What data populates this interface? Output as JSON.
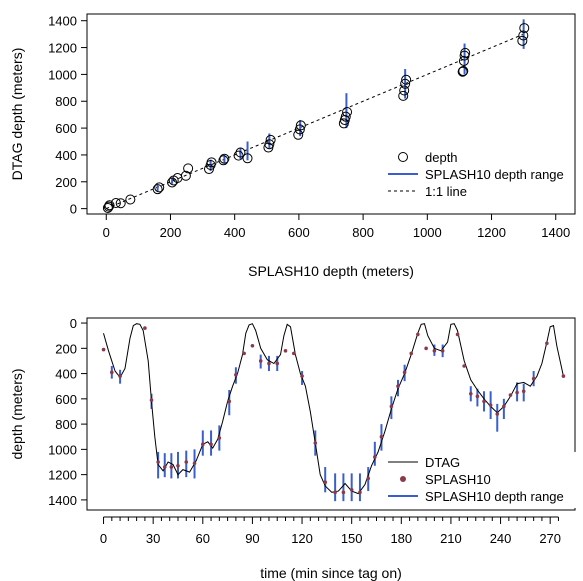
{
  "chart_data": [
    {
      "type": "scatter",
      "xlabel": "SPLASH10 depth (meters)",
      "ylabel": "DTAG depth (meters)",
      "xlim": [
        -60,
        1460
      ],
      "ylim": [
        -40,
        1450
      ],
      "xticks": [
        0,
        200,
        400,
        600,
        800,
        1000,
        1200,
        1400
      ],
      "yticks": [
        0,
        200,
        400,
        600,
        800,
        1000,
        1200,
        1400
      ],
      "grid": false,
      "legend_position": "bottom-right",
      "legend": {
        "points": "depth",
        "range": "SPLASH10 depth range",
        "line": "1:1 line"
      },
      "colors": {
        "range": "#3a5fcd",
        "points": "#000000",
        "line": "#000000"
      },
      "points": [
        [
          5,
          5
        ],
        [
          8,
          15
        ],
        [
          10,
          25
        ],
        [
          30,
          42
        ],
        [
          45,
          40
        ],
        [
          75,
          68
        ],
        [
          160,
          145
        ],
        [
          165,
          158
        ],
        [
          205,
          195
        ],
        [
          210,
          210
        ],
        [
          222,
          228
        ],
        [
          248,
          245
        ],
        [
          255,
          300
        ],
        [
          320,
          295
        ],
        [
          325,
          325
        ],
        [
          328,
          345
        ],
        [
          365,
          360
        ],
        [
          368,
          372
        ],
        [
          412,
          395
        ],
        [
          418,
          418
        ],
        [
          440,
          375
        ],
        [
          505,
          455
        ],
        [
          508,
          480
        ],
        [
          512,
          512
        ],
        [
          598,
          550
        ],
        [
          603,
          590
        ],
        [
          606,
          620
        ],
        [
          740,
          635
        ],
        [
          743,
          660
        ],
        [
          746,
          685
        ],
        [
          750,
          720
        ],
        [
          925,
          840
        ],
        [
          928,
          880
        ],
        [
          931,
          930
        ],
        [
          934,
          960
        ],
        [
          1110,
          1020
        ],
        [
          1112,
          1025
        ],
        [
          1114,
          1100
        ],
        [
          1116,
          1140
        ],
        [
          1118,
          1160
        ],
        [
          1296,
          1250
        ],
        [
          1299,
          1290
        ],
        [
          1302,
          1345
        ]
      ],
      "ranges": [
        [
          160,
          130,
          175
        ],
        [
          205,
          185,
          225
        ],
        [
          325,
          280,
          365
        ],
        [
          368,
          340,
          400
        ],
        [
          418,
          370,
          455
        ],
        [
          440,
          360,
          500
        ],
        [
          508,
          450,
          560
        ],
        [
          604,
          540,
          660
        ],
        [
          748,
          600,
          860
        ],
        [
          931,
          820,
          1040
        ],
        [
          1116,
          1000,
          1230
        ],
        [
          1300,
          1190,
          1410
        ]
      ]
    },
    {
      "type": "line",
      "xlabel": "time (min since tag on)",
      "ylabel": "depth (meters)",
      "xlim": [
        -10,
        285
      ],
      "ylim": [
        1480,
        -40
      ],
      "xticks": [
        0,
        30,
        60,
        90,
        120,
        150,
        180,
        210,
        240,
        270
      ],
      "yticks": [
        0,
        200,
        400,
        600,
        800,
        1000,
        1200,
        1400
      ],
      "minor_xticks": [
        5,
        10,
        15,
        20,
        25,
        35,
        40,
        45,
        50,
        55,
        65,
        70,
        75,
        80,
        85,
        95,
        100,
        105,
        110,
        115,
        125,
        130,
        135,
        140,
        145,
        155,
        160,
        165,
        170,
        175,
        185,
        190,
        195,
        200,
        205,
        215,
        220,
        225,
        230,
        235,
        245,
        250,
        255,
        260,
        265,
        275
      ],
      "grid": false,
      "legend_position": "bottom-right",
      "legend": {
        "line": "DTAG",
        "points": "SPLASH10",
        "range": "SPLASH10 depth range"
      },
      "colors": {
        "line": "#000000",
        "points": "#8b3a4a",
        "range": "#3a5fcd"
      },
      "dtag": [
        [
          0,
          80
        ],
        [
          3,
          220
        ],
        [
          7,
          380
        ],
        [
          10,
          430
        ],
        [
          13,
          360
        ],
        [
          16,
          120
        ],
        [
          18,
          20
        ],
        [
          20,
          5
        ],
        [
          22,
          10
        ],
        [
          24,
          60
        ],
        [
          27,
          300
        ],
        [
          29,
          620
        ],
        [
          31,
          900
        ],
        [
          33,
          1120
        ],
        [
          36,
          1170
        ],
        [
          39,
          1100
        ],
        [
          42,
          1120
        ],
        [
          45,
          1200
        ],
        [
          48,
          1160
        ],
        [
          52,
          1180
        ],
        [
          56,
          1090
        ],
        [
          60,
          960
        ],
        [
          63,
          940
        ],
        [
          66,
          990
        ],
        [
          69,
          920
        ],
        [
          72,
          780
        ],
        [
          75,
          620
        ],
        [
          78,
          500
        ],
        [
          81,
          400
        ],
        [
          84,
          250
        ],
        [
          86,
          80
        ],
        [
          88,
          15
        ],
        [
          90,
          5
        ],
        [
          92,
          60
        ],
        [
          95,
          200
        ],
        [
          99,
          290
        ],
        [
          103,
          320
        ],
        [
          107,
          250
        ],
        [
          109,
          100
        ],
        [
          111,
          10
        ],
        [
          113,
          30
        ],
        [
          116,
          250
        ],
        [
          119,
          400
        ],
        [
          122,
          500
        ],
        [
          125,
          700
        ],
        [
          128,
          950
        ],
        [
          131,
          1200
        ],
        [
          134,
          1290
        ],
        [
          138,
          1340
        ],
        [
          142,
          1330
        ],
        [
          146,
          1270
        ],
        [
          150,
          1330
        ],
        [
          154,
          1350
        ],
        [
          158,
          1280
        ],
        [
          162,
          1130
        ],
        [
          166,
          1020
        ],
        [
          170,
          860
        ],
        [
          174,
          680
        ],
        [
          178,
          520
        ],
        [
          182,
          400
        ],
        [
          186,
          250
        ],
        [
          190,
          80
        ],
        [
          192,
          10
        ],
        [
          194,
          5
        ],
        [
          196,
          100
        ],
        [
          200,
          200
        ],
        [
          204,
          220
        ],
        [
          208,
          150
        ],
        [
          210,
          10
        ],
        [
          212,
          5
        ],
        [
          214,
          60
        ],
        [
          218,
          300
        ],
        [
          222,
          450
        ],
        [
          226,
          530
        ],
        [
          230,
          600
        ],
        [
          234,
          660
        ],
        [
          238,
          710
        ],
        [
          242,
          660
        ],
        [
          246,
          580
        ],
        [
          250,
          480
        ],
        [
          254,
          470
        ],
        [
          258,
          500
        ],
        [
          262,
          420
        ],
        [
          265,
          320
        ],
        [
          268,
          150
        ],
        [
          270,
          30
        ],
        [
          272,
          20
        ],
        [
          274,
          180
        ],
        [
          276,
          300
        ],
        [
          278,
          420
        ]
      ],
      "splash": [
        [
          0,
          210
        ],
        [
          5,
          390
        ],
        [
          10,
          420
        ],
        [
          25,
          40
        ],
        [
          29,
          610
        ],
        [
          33,
          1100
        ],
        [
          37,
          1140
        ],
        [
          41,
          1140
        ],
        [
          45,
          1130
        ],
        [
          50,
          1100
        ],
        [
          55,
          1110
        ],
        [
          60,
          960
        ],
        [
          65,
          960
        ],
        [
          70,
          910
        ],
        [
          76,
          620
        ],
        [
          80,
          410
        ],
        [
          85,
          240
        ],
        [
          90,
          180
        ],
        [
          95,
          300
        ],
        [
          100,
          320
        ],
        [
          105,
          320
        ],
        [
          110,
          220
        ],
        [
          115,
          240
        ],
        [
          120,
          420
        ],
        [
          128,
          950
        ],
        [
          134,
          1260
        ],
        [
          140,
          1340
        ],
        [
          145,
          1340
        ],
        [
          150,
          1320
        ],
        [
          155,
          1340
        ],
        [
          160,
          1230
        ],
        [
          164,
          1060
        ],
        [
          168,
          900
        ],
        [
          174,
          660
        ],
        [
          178,
          500
        ],
        [
          182,
          390
        ],
        [
          186,
          240
        ],
        [
          190,
          90
        ],
        [
          195,
          200
        ],
        [
          200,
          220
        ],
        [
          205,
          220
        ],
        [
          214,
          90
        ],
        [
          218,
          340
        ],
        [
          222,
          560
        ],
        [
          226,
          580
        ],
        [
          230,
          620
        ],
        [
          234,
          650
        ],
        [
          238,
          720
        ],
        [
          242,
          660
        ],
        [
          246,
          570
        ],
        [
          250,
          550
        ],
        [
          254,
          540
        ],
        [
          260,
          440
        ],
        [
          268,
          160
        ],
        [
          278,
          420
        ]
      ],
      "ranges": [
        [
          5,
          340,
          440
        ],
        [
          10,
          370,
          480
        ],
        [
          29,
          560,
          680
        ],
        [
          33,
          1020,
          1230
        ],
        [
          37,
          1030,
          1220
        ],
        [
          41,
          1030,
          1230
        ],
        [
          45,
          1020,
          1230
        ],
        [
          50,
          1010,
          1220
        ],
        [
          55,
          1000,
          1230
        ],
        [
          60,
          850,
          1050
        ],
        [
          65,
          850,
          1050
        ],
        [
          70,
          810,
          1010
        ],
        [
          76,
          530,
          730
        ],
        [
          80,
          350,
          480
        ],
        [
          95,
          250,
          360
        ],
        [
          100,
          260,
          380
        ],
        [
          105,
          260,
          380
        ],
        [
          120,
          380,
          490
        ],
        [
          128,
          850,
          1050
        ],
        [
          134,
          1140,
          1340
        ],
        [
          140,
          1190,
          1410
        ],
        [
          145,
          1190,
          1410
        ],
        [
          150,
          1190,
          1410
        ],
        [
          155,
          1190,
          1410
        ],
        [
          160,
          1140,
          1330
        ],
        [
          164,
          940,
          1130
        ],
        [
          168,
          800,
          1010
        ],
        [
          174,
          580,
          760
        ],
        [
          178,
          450,
          580
        ],
        [
          182,
          330,
          460
        ],
        [
          200,
          170,
          260
        ],
        [
          205,
          170,
          270
        ],
        [
          222,
          500,
          620
        ],
        [
          226,
          520,
          660
        ],
        [
          230,
          540,
          700
        ],
        [
          234,
          540,
          760
        ],
        [
          238,
          640,
          860
        ],
        [
          242,
          600,
          760
        ],
        [
          250,
          470,
          620
        ],
        [
          254,
          480,
          620
        ],
        [
          260,
          380,
          500
        ]
      ]
    }
  ]
}
